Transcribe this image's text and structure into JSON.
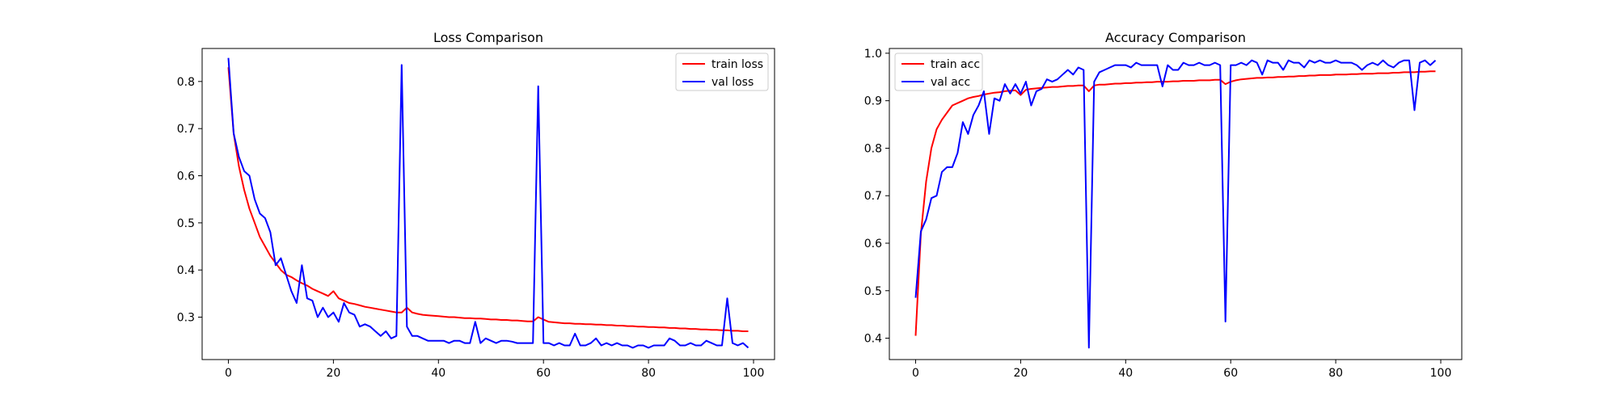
{
  "figure": {
    "background": "#ffffff"
  },
  "chart_data": [
    {
      "type": "line",
      "title": "Loss Comparison",
      "xlabel": "",
      "ylabel": "",
      "xlim": [
        -5,
        104
      ],
      "ylim": [
        0.21,
        0.87
      ],
      "xticks": [
        0,
        20,
        40,
        60,
        80,
        100
      ],
      "yticks": [
        0.3,
        0.4,
        0.5,
        0.6,
        0.7,
        0.8
      ],
      "grid": false,
      "legend": "top-right",
      "series": [
        {
          "name": "train loss",
          "color": "#ff0000",
          "x": [
            0,
            1,
            2,
            3,
            4,
            5,
            6,
            7,
            8,
            9,
            10,
            11,
            12,
            13,
            14,
            15,
            16,
            17,
            18,
            19,
            20,
            21,
            22,
            23,
            24,
            25,
            26,
            27,
            28,
            29,
            30,
            31,
            32,
            33,
            34,
            35,
            36,
            37,
            38,
            39,
            40,
            41,
            42,
            43,
            44,
            45,
            46,
            47,
            48,
            49,
            50,
            51,
            52,
            53,
            54,
            55,
            56,
            57,
            58,
            59,
            60,
            61,
            62,
            63,
            64,
            65,
            66,
            67,
            68,
            69,
            70,
            71,
            72,
            73,
            74,
            75,
            76,
            77,
            78,
            79,
            80,
            81,
            82,
            83,
            84,
            85,
            86,
            87,
            88,
            89,
            90,
            91,
            92,
            93,
            94,
            95,
            96,
            97,
            98,
            99
          ],
          "y": [
            0.83,
            0.69,
            0.62,
            0.57,
            0.53,
            0.5,
            0.47,
            0.45,
            0.43,
            0.415,
            0.4,
            0.39,
            0.385,
            0.378,
            0.372,
            0.367,
            0.36,
            0.355,
            0.35,
            0.345,
            0.355,
            0.34,
            0.335,
            0.33,
            0.328,
            0.325,
            0.322,
            0.32,
            0.318,
            0.316,
            0.314,
            0.312,
            0.31,
            0.31,
            0.32,
            0.31,
            0.307,
            0.305,
            0.304,
            0.303,
            0.302,
            0.301,
            0.3,
            0.3,
            0.299,
            0.298,
            0.298,
            0.297,
            0.297,
            0.296,
            0.295,
            0.295,
            0.294,
            0.294,
            0.293,
            0.293,
            0.292,
            0.291,
            0.291,
            0.3,
            0.295,
            0.29,
            0.289,
            0.288,
            0.287,
            0.287,
            0.286,
            0.286,
            0.285,
            0.285,
            0.284,
            0.284,
            0.283,
            0.283,
            0.282,
            0.282,
            0.281,
            0.281,
            0.28,
            0.28,
            0.279,
            0.279,
            0.278,
            0.278,
            0.277,
            0.277,
            0.276,
            0.276,
            0.275,
            0.275,
            0.274,
            0.274,
            0.273,
            0.273,
            0.272,
            0.272,
            0.271,
            0.271,
            0.27,
            0.27
          ]
        },
        {
          "name": "val loss",
          "color": "#0000ff",
          "x": [
            0,
            1,
            2,
            3,
            4,
            5,
            6,
            7,
            8,
            9,
            10,
            11,
            12,
            13,
            14,
            15,
            16,
            17,
            18,
            19,
            20,
            21,
            22,
            23,
            24,
            25,
            26,
            27,
            28,
            29,
            30,
            31,
            32,
            33,
            34,
            35,
            36,
            37,
            38,
            39,
            40,
            41,
            42,
            43,
            44,
            45,
            46,
            47,
            48,
            49,
            50,
            51,
            52,
            53,
            54,
            55,
            56,
            57,
            58,
            59,
            60,
            61,
            62,
            63,
            64,
            65,
            66,
            67,
            68,
            69,
            70,
            71,
            72,
            73,
            74,
            75,
            76,
            77,
            78,
            79,
            80,
            81,
            82,
            83,
            84,
            85,
            86,
            87,
            88,
            89,
            90,
            91,
            92,
            93,
            94,
            95,
            96,
            97,
            98,
            99
          ],
          "y": [
            0.85,
            0.69,
            0.64,
            0.61,
            0.6,
            0.55,
            0.52,
            0.51,
            0.48,
            0.41,
            0.425,
            0.39,
            0.355,
            0.33,
            0.41,
            0.34,
            0.335,
            0.3,
            0.32,
            0.3,
            0.31,
            0.29,
            0.33,
            0.31,
            0.305,
            0.28,
            0.285,
            0.28,
            0.27,
            0.26,
            0.27,
            0.255,
            0.26,
            0.835,
            0.28,
            0.26,
            0.26,
            0.255,
            0.25,
            0.25,
            0.25,
            0.25,
            0.245,
            0.25,
            0.25,
            0.245,
            0.245,
            0.29,
            0.245,
            0.255,
            0.25,
            0.245,
            0.25,
            0.25,
            0.248,
            0.245,
            0.245,
            0.245,
            0.245,
            0.79,
            0.245,
            0.245,
            0.24,
            0.245,
            0.24,
            0.24,
            0.265,
            0.24,
            0.24,
            0.245,
            0.255,
            0.24,
            0.245,
            0.24,
            0.245,
            0.24,
            0.24,
            0.235,
            0.24,
            0.24,
            0.235,
            0.24,
            0.24,
            0.24,
            0.255,
            0.25,
            0.24,
            0.24,
            0.245,
            0.24,
            0.24,
            0.25,
            0.245,
            0.24,
            0.24,
            0.34,
            0.245,
            0.24,
            0.245,
            0.235
          ]
        }
      ]
    },
    {
      "type": "line",
      "title": "Accuracy Comparison",
      "xlabel": "",
      "ylabel": "",
      "xlim": [
        -5,
        104
      ],
      "ylim": [
        0.355,
        1.01
      ],
      "xticks": [
        0,
        20,
        40,
        60,
        80,
        100
      ],
      "yticks": [
        0.4,
        0.5,
        0.6,
        0.7,
        0.8,
        0.9,
        1.0
      ],
      "grid": false,
      "legend": "top-left",
      "series": [
        {
          "name": "train acc",
          "color": "#ff0000",
          "x": [
            0,
            1,
            2,
            3,
            4,
            5,
            6,
            7,
            8,
            9,
            10,
            11,
            12,
            13,
            14,
            15,
            16,
            17,
            18,
            19,
            20,
            21,
            22,
            23,
            24,
            25,
            26,
            27,
            28,
            29,
            30,
            31,
            32,
            33,
            34,
            35,
            36,
            37,
            38,
            39,
            40,
            41,
            42,
            43,
            44,
            45,
            46,
            47,
            48,
            49,
            50,
            51,
            52,
            53,
            54,
            55,
            56,
            57,
            58,
            59,
            60,
            61,
            62,
            63,
            64,
            65,
            66,
            67,
            68,
            69,
            70,
            71,
            72,
            73,
            74,
            75,
            76,
            77,
            78,
            79,
            80,
            81,
            82,
            83,
            84,
            85,
            86,
            87,
            88,
            89,
            90,
            91,
            92,
            93,
            94,
            95,
            96,
            97,
            98,
            99
          ],
          "y": [
            0.405,
            0.62,
            0.73,
            0.8,
            0.84,
            0.86,
            0.875,
            0.89,
            0.895,
            0.9,
            0.905,
            0.908,
            0.91,
            0.913,
            0.915,
            0.917,
            0.918,
            0.92,
            0.921,
            0.922,
            0.912,
            0.923,
            0.925,
            0.926,
            0.927,
            0.928,
            0.929,
            0.929,
            0.93,
            0.931,
            0.931,
            0.932,
            0.932,
            0.92,
            0.932,
            0.934,
            0.934,
            0.935,
            0.936,
            0.936,
            0.937,
            0.937,
            0.938,
            0.938,
            0.939,
            0.939,
            0.94,
            0.94,
            0.94,
            0.941,
            0.941,
            0.942,
            0.942,
            0.942,
            0.943,
            0.943,
            0.943,
            0.944,
            0.944,
            0.935,
            0.94,
            0.943,
            0.945,
            0.946,
            0.947,
            0.948,
            0.948,
            0.949,
            0.949,
            0.95,
            0.95,
            0.951,
            0.951,
            0.952,
            0.952,
            0.953,
            0.953,
            0.954,
            0.954,
            0.954,
            0.955,
            0.955,
            0.955,
            0.956,
            0.956,
            0.957,
            0.957,
            0.957,
            0.958,
            0.958,
            0.958,
            0.959,
            0.959,
            0.96,
            0.96,
            0.96,
            0.961,
            0.961,
            0.962,
            0.962
          ]
        },
        {
          "name": "val acc",
          "color": "#0000ff",
          "x": [
            0,
            1,
            2,
            3,
            4,
            5,
            6,
            7,
            8,
            9,
            10,
            11,
            12,
            13,
            14,
            15,
            16,
            17,
            18,
            19,
            20,
            21,
            22,
            23,
            24,
            25,
            26,
            27,
            28,
            29,
            30,
            31,
            32,
            33,
            34,
            35,
            36,
            37,
            38,
            39,
            40,
            41,
            42,
            43,
            44,
            45,
            46,
            47,
            48,
            49,
            50,
            51,
            52,
            53,
            54,
            55,
            56,
            57,
            58,
            59,
            60,
            61,
            62,
            63,
            64,
            65,
            66,
            67,
            68,
            69,
            70,
            71,
            72,
            73,
            74,
            75,
            76,
            77,
            78,
            79,
            80,
            81,
            82,
            83,
            84,
            85,
            86,
            87,
            88,
            89,
            90,
            91,
            92,
            93,
            94,
            95,
            96,
            97,
            98,
            99
          ],
          "y": [
            0.485,
            0.625,
            0.65,
            0.695,
            0.7,
            0.75,
            0.76,
            0.76,
            0.79,
            0.855,
            0.83,
            0.87,
            0.89,
            0.92,
            0.83,
            0.905,
            0.9,
            0.935,
            0.915,
            0.935,
            0.915,
            0.94,
            0.89,
            0.92,
            0.925,
            0.945,
            0.94,
            0.945,
            0.955,
            0.965,
            0.955,
            0.97,
            0.965,
            0.38,
            0.94,
            0.96,
            0.965,
            0.97,
            0.975,
            0.975,
            0.975,
            0.97,
            0.98,
            0.975,
            0.975,
            0.975,
            0.975,
            0.93,
            0.975,
            0.965,
            0.965,
            0.98,
            0.975,
            0.975,
            0.98,
            0.975,
            0.975,
            0.98,
            0.975,
            0.435,
            0.975,
            0.975,
            0.98,
            0.975,
            0.985,
            0.98,
            0.955,
            0.985,
            0.98,
            0.98,
            0.965,
            0.985,
            0.98,
            0.98,
            0.97,
            0.985,
            0.98,
            0.985,
            0.98,
            0.98,
            0.985,
            0.98,
            0.98,
            0.98,
            0.975,
            0.965,
            0.975,
            0.98,
            0.975,
            0.985,
            0.975,
            0.97,
            0.98,
            0.985,
            0.985,
            0.88,
            0.98,
            0.985,
            0.975,
            0.985
          ]
        }
      ]
    }
  ]
}
